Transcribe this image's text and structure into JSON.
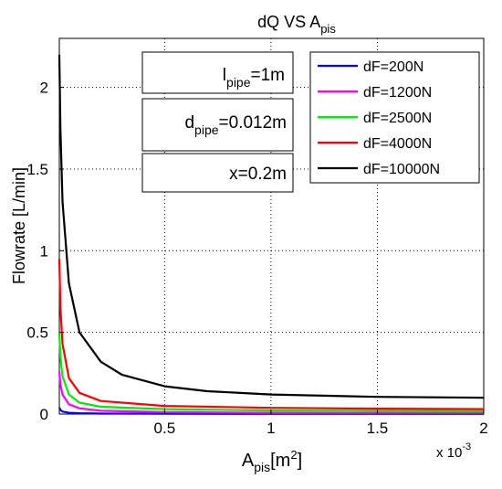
{
  "chart_data": {
    "type": "line",
    "title_main": "dQ VS  A",
    "title_sub": "pis",
    "xlabel_main": "A",
    "xlabel_sub": "pis",
    "xlabel_unit_pre": "[m",
    "xlabel_unit_sup": "2",
    "xlabel_unit_post": "]",
    "ylabel": "Flowrate  [L/min]",
    "x_multiplier_base": "x 10",
    "x_multiplier_exp": "-3",
    "xlim": [
      5e-06,
      0.002
    ],
    "ylim": [
      0,
      2.3
    ],
    "x_ticks": [
      0.0005,
      0.001,
      0.0015,
      0.002
    ],
    "x_tick_labels": [
      "0.5",
      "1",
      "1.5",
      "2"
    ],
    "y_ticks": [
      0,
      0.5,
      1,
      1.5,
      2
    ],
    "y_tick_labels": [
      "0",
      "0.5",
      "1",
      "1.5",
      "2"
    ],
    "grid": true,
    "legend_position": "top-right",
    "annotations": [
      {
        "main": "l",
        "sub": "pipe",
        "rest": "=1m"
      },
      {
        "main": "d",
        "sub": "pipe",
        "rest": "=0.012m"
      },
      {
        "main": "x=0.2m",
        "sub": "",
        "rest": ""
      }
    ],
    "series": [
      {
        "name": "dF=200N",
        "color": "#0000ff",
        "x": [
          5e-06,
          1e-05,
          2e-05,
          5e-05,
          0.0001,
          0.0002,
          0.0005,
          0.001,
          0.0015,
          0.002
        ],
        "y": [
          0.04,
          0.025,
          0.015,
          0.008,
          0.005,
          0.003,
          0.002,
          0.001,
          0.001,
          0.001
        ]
      },
      {
        "name": "dF=1200N",
        "color": "#ff00ff",
        "x": [
          5e-06,
          1e-05,
          2e-05,
          5e-05,
          0.0001,
          0.0002,
          0.0005,
          0.001,
          0.0015,
          0.002
        ],
        "y": [
          0.26,
          0.18,
          0.12,
          0.06,
          0.035,
          0.02,
          0.012,
          0.008,
          0.007,
          0.007
        ]
      },
      {
        "name": "dF=2500N",
        "color": "#00ee00",
        "x": [
          5e-06,
          1e-05,
          2e-05,
          5e-05,
          0.0001,
          0.0002,
          0.0005,
          0.001,
          0.0015,
          0.002
        ],
        "y": [
          0.5,
          0.35,
          0.23,
          0.12,
          0.07,
          0.045,
          0.03,
          0.022,
          0.02,
          0.018
        ]
      },
      {
        "name": "dF=4000N",
        "color": "#ff0000",
        "x": [
          5e-06,
          1e-05,
          2e-05,
          5e-05,
          0.0001,
          0.0002,
          0.0005,
          0.001,
          0.0015,
          0.002
        ],
        "y": [
          0.95,
          0.65,
          0.43,
          0.22,
          0.13,
          0.08,
          0.05,
          0.038,
          0.033,
          0.03
        ]
      },
      {
        "name": "dF=10000N",
        "color": "#000000",
        "x": [
          5e-06,
          1e-05,
          2e-05,
          5e-05,
          0.0001,
          0.0002,
          0.0003,
          0.0005,
          0.0007,
          0.001,
          0.0015,
          0.002
        ],
        "y": [
          2.2,
          1.75,
          1.3,
          0.8,
          0.5,
          0.32,
          0.24,
          0.17,
          0.14,
          0.12,
          0.105,
          0.1
        ]
      }
    ]
  }
}
